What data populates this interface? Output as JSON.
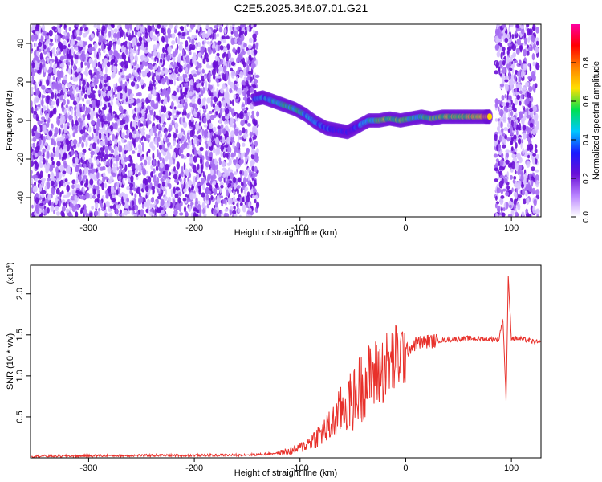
{
  "title": "C2E5.2025.346.07.01.G21",
  "colors": {
    "snr_line": "#e8302a",
    "panel_bg": "#ffffff",
    "axis": "#000000",
    "noise_dot": "#8a2be2"
  },
  "chart_data": [
    {
      "type": "heatmap",
      "title": "C2E5.2025.346.07.01.G21",
      "xlabel": "Height of straight line (km)",
      "ylabel": "Frequency (Hz)",
      "xlim": [
        -355,
        128
      ],
      "ylim": [
        -50,
        50
      ],
      "x_ticks": [
        -300,
        -200,
        -100,
        0,
        100
      ],
      "y_ticks": [
        -40,
        -20,
        0,
        20,
        40
      ],
      "colorbar": {
        "label": "Normalized spectral amplitude",
        "range": [
          0.0,
          1.0
        ],
        "ticks": [
          0.0,
          0.2,
          0.4,
          0.6,
          0.8
        ],
        "colormap": [
          "#ffffff",
          "#b983ff",
          "#6a0fd6",
          "#1a1aff",
          "#00c8ff",
          "#00e050",
          "#ffe000",
          "#ff8000",
          "#ff0000",
          "#ff00a0"
        ]
      },
      "noise_regions": [
        {
          "x": [
            -355,
            -140
          ],
          "y": [
            -50,
            50
          ]
        },
        {
          "x": [
            85,
            125
          ],
          "y": [
            -50,
            50
          ]
        }
      ],
      "signal_trace": {
        "x": [
          -143,
          -135,
          -125,
          -115,
          -105,
          -95,
          -85,
          -75,
          -65,
          -55,
          -45,
          -35,
          -25,
          -15,
          -5,
          5,
          15,
          25,
          35,
          45,
          55,
          65,
          75,
          80
        ],
        "freq": [
          11,
          12,
          10,
          8,
          6,
          3,
          -1,
          -4,
          -5,
          -6,
          -3,
          0,
          0,
          1,
          0,
          1,
          2,
          1,
          2,
          2,
          2,
          2,
          2,
          2
        ],
        "amplitude": [
          0.35,
          0.4,
          0.45,
          0.5,
          0.5,
          0.45,
          0.4,
          0.35,
          0.3,
          0.3,
          0.35,
          0.45,
          0.55,
          0.6,
          0.55,
          0.5,
          0.5,
          0.55,
          0.55,
          0.6,
          0.6,
          0.65,
          0.7,
          0.75
        ]
      }
    },
    {
      "type": "line",
      "xlabel": "Height of straight line (km)",
      "ylabel": "SNR (10 * v/v)",
      "y_multiplier": "(x10",
      "y_multiplier_exp": "4",
      "y_multiplier_close": ")",
      "xlim": [
        -355,
        128
      ],
      "ylim": [
        0,
        23500
      ],
      "x_ticks": [
        -300,
        -200,
        -100,
        0,
        100
      ],
      "y_ticks": [
        5000,
        10000,
        15000,
        20000
      ],
      "y_tick_labels": [
        "0.5",
        "1.0",
        "1.5",
        "2.0"
      ],
      "series": [
        {
          "x": [
            -355,
            -300,
            -250,
            -200,
            -160,
            -140,
            -120,
            -110,
            -100,
            -90,
            -80,
            -70,
            -60,
            -50,
            -40,
            -30,
            -20,
            -10,
            0,
            10,
            20,
            30,
            40,
            50,
            60,
            70,
            80,
            88,
            92,
            95,
            97,
            100,
            110,
            120,
            128
          ],
          "values": [
            200,
            250,
            300,
            300,
            350,
            400,
            600,
            800,
            1200,
            2000,
            3000,
            4000,
            6000,
            7000,
            9000,
            10000,
            11000,
            12000,
            13000,
            14000,
            14200,
            14300,
            14400,
            14500,
            14600,
            14500,
            14500,
            14400,
            17000,
            7000,
            22000,
            14600,
            14500,
            14200,
            14000
          ]
        }
      ]
    }
  ]
}
